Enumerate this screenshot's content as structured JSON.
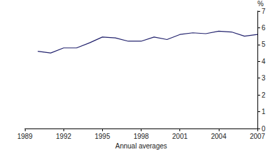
{
  "chart_data": {
    "type": "line",
    "xlabel": "Annual averages",
    "ylabel": "%",
    "x": [
      1990,
      1991,
      1992,
      1993,
      1994,
      1995,
      1996,
      1997,
      1998,
      1999,
      2000,
      2001,
      2002,
      2003,
      2004,
      2005,
      2006,
      2007
    ],
    "values": [
      4.6,
      4.5,
      4.8,
      4.8,
      5.1,
      5.45,
      5.4,
      5.2,
      5.2,
      5.45,
      5.3,
      5.6,
      5.7,
      5.65,
      5.8,
      5.75,
      5.5,
      5.6
    ],
    "color": "#1f1f6b",
    "xlim": [
      1989,
      2007
    ],
    "xticks": [
      1989,
      1992,
      1995,
      1998,
      2001,
      2004,
      2007
    ],
    "ylim": [
      0,
      7
    ],
    "yticks": [
      0,
      1,
      2,
      3,
      4,
      5,
      6,
      7
    ],
    "grid": false
  }
}
